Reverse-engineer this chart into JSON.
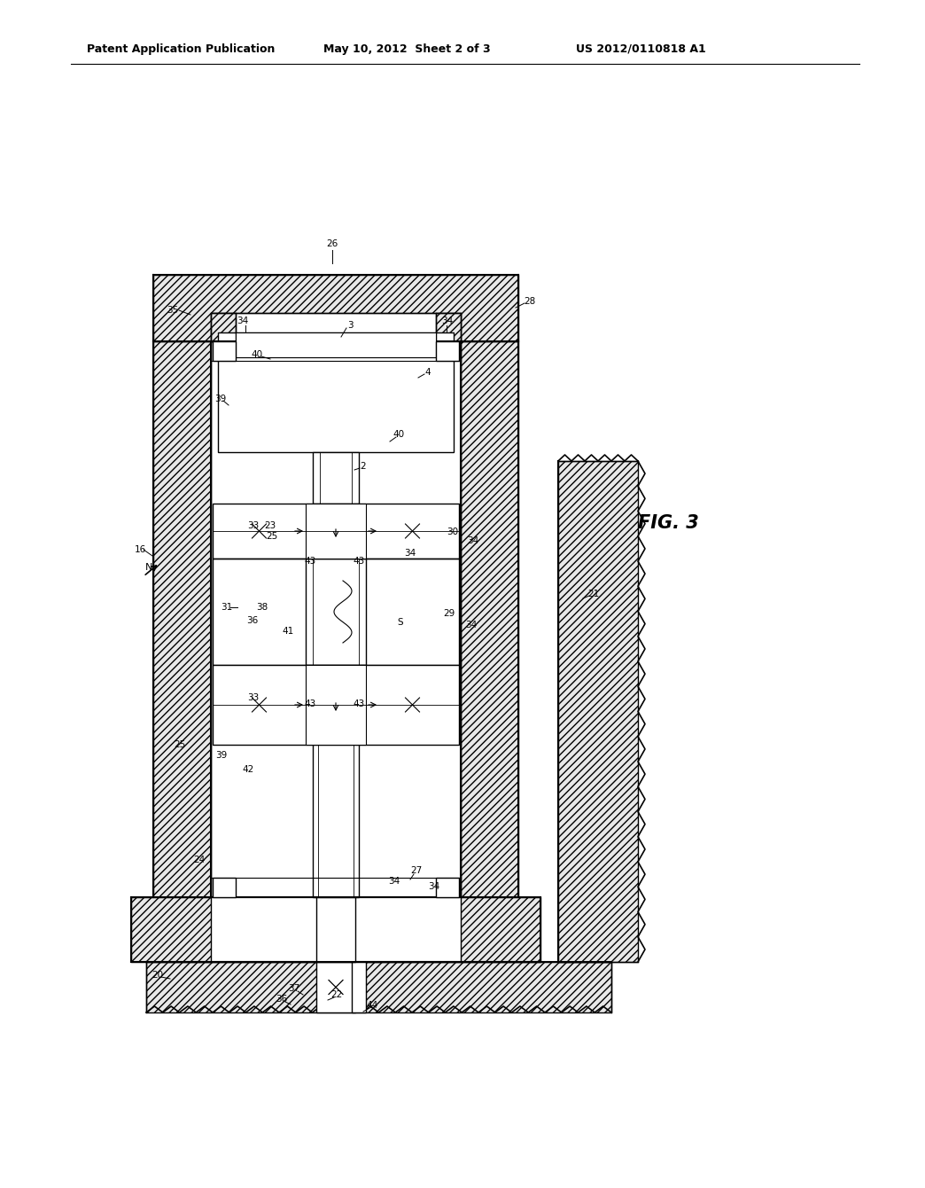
{
  "title_left": "Patent Application Publication",
  "title_mid": "May 10, 2012  Sheet 2 of 3",
  "title_right": "US 2012/0110818 A1",
  "fig_label": "FIG. 3",
  "bg_color": "#ffffff",
  "line_color": "#000000",
  "hatch_color": "#aaaaaa"
}
